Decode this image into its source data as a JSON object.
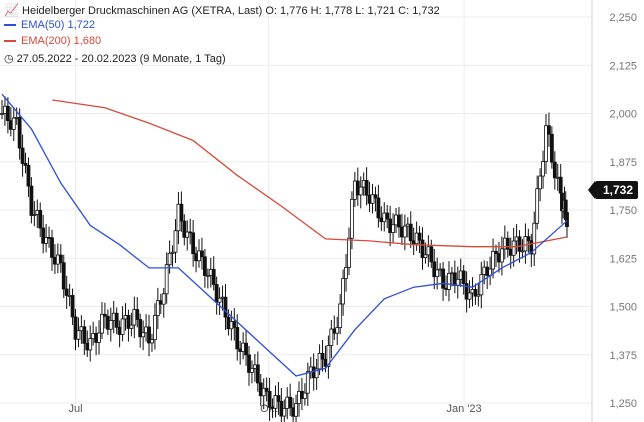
{
  "header": {
    "title": "Heidelberger Druckmaschinen AG (XETRA, Last)",
    "ohlc": {
      "o_label": "O:",
      "o": "1,776",
      "h_label": "H:",
      "h": "1,778",
      "l_label": "L:",
      "l": "1,721",
      "c_label": "C:",
      "c": "1,732"
    },
    "ema50": {
      "label": "EMA(50)",
      "value": "1,722",
      "color": "#2e4fd8"
    },
    "ema200": {
      "label": "EMA(200)",
      "value": "1,680",
      "color": "#d7493b"
    },
    "range": {
      "dates": "27.05.2022 - 20.02.2023",
      "period": "(9 Monate, 1 Tag)"
    }
  },
  "price_tag": "1,732",
  "chart_data": {
    "type": "line",
    "y_axis": {
      "range": [
        1.25,
        2.25
      ],
      "ticks": [
        "2,250",
        "2,125",
        "2,000",
        "1,875",
        "1,750",
        "1,625",
        "1,500",
        "1,375",
        "1,250"
      ],
      "tick_values": [
        2.25,
        2.125,
        2.0,
        1.875,
        1.75,
        1.625,
        1.5,
        1.375,
        1.25
      ],
      "position": "right"
    },
    "x_axis": {
      "ticks": [
        "Jul",
        "Okt",
        "Jan '23"
      ],
      "tick_dates": [
        "2022-07-01",
        "2022-10-01",
        "2023-01-02"
      ],
      "range": [
        "2022-05-27",
        "2023-02-20"
      ]
    },
    "grid": true,
    "series": [
      {
        "name": "Heidelberger Druckmaschinen AG (XETRA, Last)",
        "style": "candles-close",
        "dates": [
          "2022-05-27",
          "2022-06-03",
          "2022-06-10",
          "2022-06-17",
          "2022-06-24",
          "2022-07-01",
          "2022-07-08",
          "2022-07-15",
          "2022-07-22",
          "2022-07-29",
          "2022-08-05",
          "2022-08-12",
          "2022-08-19",
          "2022-08-26",
          "2022-09-02",
          "2022-09-09",
          "2022-09-16",
          "2022-09-23",
          "2022-09-30",
          "2022-10-07",
          "2022-10-14",
          "2022-10-21",
          "2022-10-28",
          "2022-11-04",
          "2022-11-11",
          "2022-11-18",
          "2022-11-25",
          "2022-12-02",
          "2022-12-09",
          "2022-12-16",
          "2022-12-23",
          "2022-12-30",
          "2023-01-06",
          "2023-01-13",
          "2023-01-20",
          "2023-01-27",
          "2023-02-03",
          "2023-02-10",
          "2023-02-17",
          "2023-02-20"
        ],
        "values": [
          2.0,
          1.97,
          1.76,
          1.67,
          1.6,
          1.44,
          1.4,
          1.47,
          1.45,
          1.47,
          1.41,
          1.55,
          1.74,
          1.65,
          1.59,
          1.5,
          1.41,
          1.34,
          1.26,
          1.24,
          1.24,
          1.33,
          1.37,
          1.49,
          1.82,
          1.79,
          1.72,
          1.71,
          1.68,
          1.63,
          1.56,
          1.58,
          1.52,
          1.6,
          1.65,
          1.66,
          1.66,
          1.96,
          1.78,
          1.732
        ]
      },
      {
        "name": "EMA(50)",
        "dates": [
          "2022-05-27",
          "2022-06-10",
          "2022-06-24",
          "2022-07-08",
          "2022-07-22",
          "2022-08-05",
          "2022-08-19",
          "2022-09-02",
          "2022-09-16",
          "2022-09-30",
          "2022-10-14",
          "2022-10-28",
          "2022-11-11",
          "2022-11-25",
          "2022-12-09",
          "2022-12-23",
          "2023-01-06",
          "2023-01-20",
          "2023-02-03",
          "2023-02-20"
        ],
        "values": [
          2.05,
          1.96,
          1.82,
          1.71,
          1.66,
          1.6,
          1.6,
          1.53,
          1.46,
          1.39,
          1.32,
          1.34,
          1.44,
          1.52,
          1.55,
          1.56,
          1.55,
          1.6,
          1.64,
          1.722
        ]
      },
      {
        "name": "EMA(200)",
        "dates": [
          "2022-06-20",
          "2022-07-15",
          "2022-08-05",
          "2022-08-26",
          "2022-09-16",
          "2022-10-07",
          "2022-10-28",
          "2022-11-18",
          "2022-12-09",
          "2023-01-06",
          "2023-01-27",
          "2023-02-20"
        ],
        "values": [
          2.035,
          2.015,
          1.975,
          1.93,
          1.84,
          1.76,
          1.675,
          1.67,
          1.66,
          1.655,
          1.655,
          1.68
        ]
      }
    ]
  }
}
